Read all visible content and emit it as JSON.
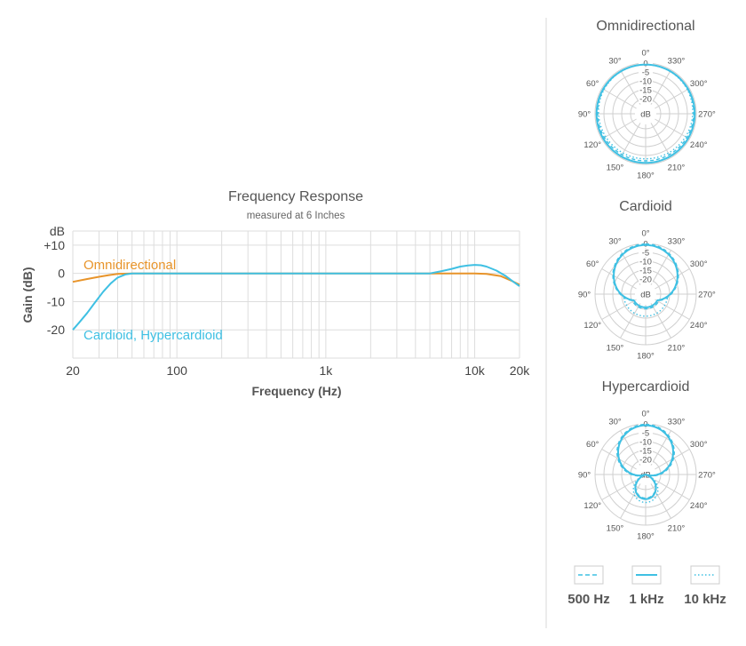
{
  "colors": {
    "omni": "#e8942a",
    "cardioid": "#3fc0e3",
    "grid": "#dddddd",
    "divider": "#d9d9d9",
    "text": "#555555"
  },
  "chart_data": [
    {
      "type": "line",
      "title": "Frequency Response",
      "subtitle": "measured at 6 Inches",
      "xlabel": "Frequency (Hz)",
      "ylabel": "Gain (dB)",
      "x_scale": "log",
      "xlim": [
        20,
        20000
      ],
      "ylim": [
        -30,
        15
      ],
      "x_ticks": [
        {
          "value": 20,
          "label": "20"
        },
        {
          "value": 100,
          "label": "100"
        },
        {
          "value": 1000,
          "label": "1k"
        },
        {
          "value": 10000,
          "label": "10k"
        },
        {
          "value": 20000,
          "label": "20k"
        }
      ],
      "y_ticks": [
        {
          "value": 10,
          "label": "+10"
        },
        {
          "value": 0,
          "label": "0"
        },
        {
          "value": -10,
          "label": "-10"
        },
        {
          "value": -20,
          "label": "-20"
        }
      ],
      "y_unit_label": "dB",
      "series": [
        {
          "name": "Omnidirectional",
          "color": "#e8942a",
          "x": [
            20,
            25,
            30,
            35,
            40,
            50,
            60,
            100,
            1000,
            5000,
            8000,
            10000,
            12000,
            15000,
            18000,
            20000
          ],
          "y": [
            -3,
            -2,
            -1.2,
            -0.6,
            -0.2,
            0,
            0,
            0,
            0,
            0,
            0,
            0,
            -0.2,
            -1,
            -2.8,
            -4
          ]
        },
        {
          "name": "Cardioid, Hypercardioid",
          "color": "#3fc0e3",
          "x": [
            20,
            22,
            25,
            28,
            32,
            36,
            40,
            45,
            50,
            55,
            60,
            100,
            1000,
            5000,
            6000,
            7000,
            8000,
            9000,
            10000,
            11000,
            12000,
            14000,
            16000,
            18000,
            20000
          ],
          "y": [
            -20,
            -17.5,
            -14,
            -10.5,
            -6.5,
            -3.5,
            -1.5,
            -0.4,
            0,
            0,
            0,
            0,
            0,
            0,
            0.8,
            1.6,
            2.4,
            2.8,
            3,
            2.9,
            2.4,
            1,
            -0.8,
            -2.8,
            -4.5
          ]
        }
      ]
    },
    {
      "type": "polar",
      "title": "Omnidirectional",
      "pattern": "omni",
      "ring_labels": [
        "0",
        "-5",
        "-10",
        "-15",
        "-20"
      ],
      "center_label": "dB",
      "angle_labels": [
        "0°",
        "30°",
        "60°",
        "90°",
        "120°",
        "150°",
        "180°",
        "210°",
        "240°",
        "270°",
        "300°",
        "330°"
      ]
    },
    {
      "type": "polar",
      "title": "Cardioid",
      "pattern": "cardioid",
      "ring_labels": [
        "0",
        "-5",
        "-10",
        "-15",
        "-20"
      ],
      "center_label": "dB",
      "angle_labels": [
        "0°",
        "30°",
        "60°",
        "90°",
        "120°",
        "150°",
        "180°",
        "210°",
        "240°",
        "270°",
        "300°",
        "330°"
      ]
    },
    {
      "type": "polar",
      "title": "Hypercardioid",
      "pattern": "hyper",
      "ring_labels": [
        "0",
        "-5",
        "-10",
        "-15",
        "-20"
      ],
      "center_label": "dB",
      "angle_labels": [
        "0°",
        "30°",
        "60°",
        "90°",
        "120°",
        "150°",
        "180°",
        "210°",
        "240°",
        "270°",
        "300°",
        "330°"
      ]
    }
  ],
  "polar_legend": [
    {
      "label": "500 Hz",
      "style": "dashed"
    },
    {
      "label": "1 kHz",
      "style": "solid"
    },
    {
      "label": "10 kHz",
      "style": "dotted"
    }
  ]
}
